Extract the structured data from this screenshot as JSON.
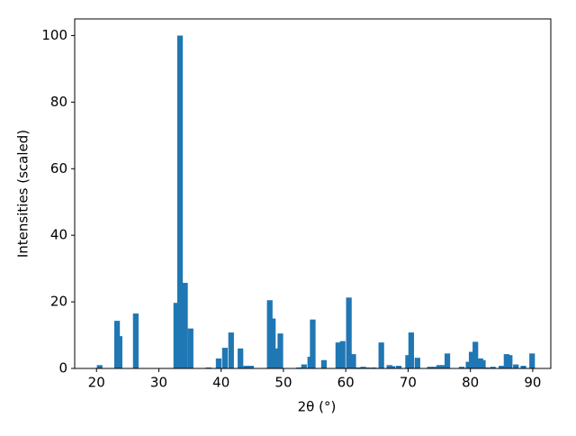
{
  "chart_data": {
    "type": "bar",
    "xlabel": "2θ (°)",
    "ylabel": "Intensities (scaled)",
    "color": "#1f77b4",
    "x": [
      20.5,
      23.3,
      23.7,
      26.3,
      32.8,
      33.4,
      34.2,
      35.1,
      38,
      39.6,
      40.6,
      41.6,
      43.1,
      44,
      44.8,
      47.8,
      48.3,
      49,
      49.5,
      52.5,
      53.3,
      54.3,
      54.7,
      56.5,
      58.8,
      59.5,
      60.5,
      61.2,
      62,
      62.8,
      63.5,
      64.5,
      65.7,
      67,
      67.5,
      68.5,
      70,
      70.5,
      71.5,
      73.5,
      74.3,
      75,
      75.6,
      76.3,
      78.6,
      79.7,
      80.2,
      80.8,
      81.6,
      82,
      82.6,
      83.6,
      85,
      85.8,
      86.3,
      87.3,
      88.5,
      89.9
    ],
    "values": [
      1,
      14.3,
      9.7,
      16.5,
      19.7,
      100,
      25.7,
      12,
      0.3,
      3,
      6.2,
      10.8,
      6,
      0.8,
      0.8,
      20.5,
      15,
      6,
      10.5,
      0.3,
      1.2,
      3.5,
      14.7,
      2.5,
      7.8,
      8.2,
      21.3,
      4.3,
      0.3,
      0.5,
      0.3,
      0.3,
      7.8,
      1,
      0.7,
      0.8,
      4,
      10.8,
      3.2,
      0.5,
      0.5,
      1,
      1,
      4.5,
      0.5,
      2,
      5,
      8,
      3,
      2.5,
      0.3,
      0.5,
      0.8,
      4.3,
      4,
      1.2,
      0.8,
      4.5
    ],
    "xlim": [
      16.5,
      92.9
    ],
    "xticks": [
      20,
      30,
      40,
      50,
      60,
      70,
      80,
      90
    ],
    "ylim": [
      0,
      105
    ],
    "yticks": [
      0,
      20,
      40,
      60,
      80,
      100
    ]
  }
}
